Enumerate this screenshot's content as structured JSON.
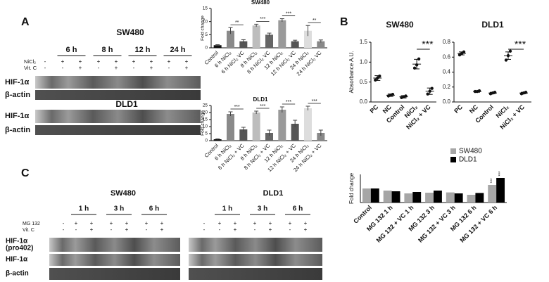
{
  "panel_a": {
    "label": "A",
    "sw480": {
      "title": "SW480",
      "times": [
        "6 h",
        "8 h",
        "12 h",
        "24 h"
      ],
      "treatments": [
        {
          "name": "NiCl₂",
          "signs": [
            "-",
            "+",
            "+",
            "+",
            "+",
            "+",
            "+",
            "+",
            "+"
          ]
        },
        {
          "name": "Vit. C",
          "signs": [
            "-",
            "-",
            "+",
            "-",
            "+",
            "-",
            "+",
            "-",
            "+"
          ]
        }
      ],
      "bands": [
        "HIF-1α",
        "β-actin"
      ]
    },
    "dld1": {
      "title": "DLD1",
      "bands": [
        "HIF-1α",
        "β-actin"
      ]
    }
  },
  "panel_b": {
    "label": "B"
  },
  "panel_c": {
    "label": "C",
    "treatments": [
      "MG 132",
      "Vit. C"
    ],
    "sw480": {
      "title": "SW480",
      "times": [
        "1 h",
        "3 h",
        "6 h"
      ],
      "signs": [
        [
          "-",
          "+",
          "+",
          "+",
          "+",
          "+",
          "+"
        ],
        [
          "-",
          "-",
          "+",
          "-",
          "+",
          "-",
          "+"
        ]
      ]
    },
    "dld1": {
      "title": "DLD1",
      "times": [
        "1 h",
        "3 h",
        "6 h"
      ],
      "signs": [
        [
          "-",
          "+",
          "+",
          "+",
          "+",
          "+",
          "+"
        ],
        [
          "-",
          "-",
          "+",
          "-",
          "+",
          "-",
          "+"
        ]
      ]
    },
    "bands": [
      [
        "HIF-1α",
        "(pro402)"
      ],
      [
        "HIF-1α"
      ],
      [
        "β-actin"
      ]
    ]
  },
  "chart_data": [
    {
      "type": "bar",
      "title": "SW480",
      "ylabel": "Fold change",
      "categories": [
        "Control",
        "6 h NiCl₂",
        "6 h NiCl₂ VC",
        "8 h NiCl₂",
        "8 h NiCl₂ VC",
        "12 h NiCl₂",
        "12 h NiCl₂ VC",
        "24 h NiCl₂",
        "24 h NiCl₂ VC"
      ],
      "values": [
        1,
        6.5,
        2.5,
        8.5,
        5,
        10.5,
        2.5,
        6.5,
        2.5
      ],
      "errors": [
        0.2,
        1.2,
        0.6,
        0.5,
        0.6,
        0.6,
        0.4,
        2,
        0.5
      ],
      "colors": [
        "#111111",
        "#8a8a8a",
        "#555555",
        "#bdbdbd",
        "#666666",
        "#9a9a9a",
        "#555555",
        "#dddddd",
        "#888888"
      ],
      "ylim": [
        0,
        15
      ],
      "yticks": [
        0,
        5,
        10,
        15
      ],
      "significance": [
        "**",
        "***",
        "***",
        "**"
      ]
    },
    {
      "type": "bar",
      "title": "DLD1",
      "ylabel": "Fold change",
      "categories": [
        "Control",
        "6 h NiCl₂",
        "6 h NiCl₂ + VC",
        "8 h NiCl₂",
        "8 h NiCl₂ + VC",
        "12 h NiCl₂",
        "12 h NiCl₂ + VC",
        "24 h NiCl₂",
        "24 h NiCl₂ + VC"
      ],
      "values": [
        1,
        19,
        8,
        20,
        5.5,
        22,
        12,
        23,
        5.5
      ],
      "errors": [
        0.3,
        1.5,
        1.5,
        1,
        2,
        2,
        2.5,
        1.5,
        2
      ],
      "colors": [
        "#111111",
        "#8a8a8a",
        "#555555",
        "#bdbdbd",
        "#666666",
        "#9a9a9a",
        "#555555",
        "#dddddd",
        "#888888"
      ],
      "ylim": [
        0,
        25
      ],
      "yticks": [
        0,
        5,
        10,
        15,
        20,
        25
      ],
      "significance": [
        "***",
        "***",
        "***",
        "***"
      ]
    },
    {
      "type": "dot",
      "title": "SW480",
      "ylabel": "Absorbance A.U.",
      "categories": [
        "PC",
        "NC",
        "Control",
        "NiCl₂",
        "NiCl₂ + VC"
      ],
      "values": [
        0.6,
        0.17,
        0.13,
        0.95,
        0.27
      ],
      "errors": [
        0.06,
        0.03,
        0.03,
        0.12,
        0.08
      ],
      "points": [
        [
          0.55,
          0.6,
          0.65
        ],
        [
          0.15,
          0.17,
          0.19
        ],
        [
          0.11,
          0.13,
          0.15
        ],
        [
          0.85,
          0.93,
          1.08
        ],
        [
          0.2,
          0.27,
          0.34
        ]
      ],
      "ylim": [
        0,
        1.5
      ],
      "yticks": [
        {
          "value": 0,
          "label": "0.0"
        },
        {
          "value": 0.5,
          "label": "0.5"
        },
        {
          "value": 1,
          "label": "1.0"
        },
        {
          "value": 1.5,
          "label": "1.5"
        }
      ],
      "significance": [
        "***"
      ]
    },
    {
      "type": "dot",
      "title": "DLD1",
      "ylabel": null,
      "categories": [
        "PC",
        "NC",
        "Control",
        "NiCl₂",
        "NiCl₂ + VC"
      ],
      "values": [
        0.65,
        0.14,
        0.12,
        0.62,
        0.12
      ],
      "errors": [
        0.02,
        0.01,
        0.01,
        0.05,
        0.01
      ],
      "points": [
        [
          0.63,
          0.65,
          0.67
        ],
        [
          0.14,
          0.14,
          0.15
        ],
        [
          0.11,
          0.12,
          0.13
        ],
        [
          0.56,
          0.62,
          0.68
        ],
        [
          0.11,
          0.12,
          0.13
        ]
      ],
      "ylim": [
        0,
        0.8
      ],
      "yticks": [
        {
          "value": 0,
          "label": "0.0"
        },
        {
          "value": 0.2,
          "label": "0.2"
        },
        {
          "value": 0.4,
          "label": "0.4"
        },
        {
          "value": 0.6,
          "label": "0.6"
        },
        {
          "value": 0.8,
          "label": "0.8"
        }
      ],
      "significance": [
        "***"
      ]
    },
    {
      "type": "grouped_bar",
      "ylabel": "Fold change",
      "categories": [
        "Control",
        "MG 132 1 h",
        "MG 132 + VC 1 h",
        "MG 132 3 h",
        "MG 132 + VC 3 h",
        "MG 132 6 h",
        "MG 132 + VC 6 h"
      ],
      "series": [
        {
          "name": "SW480",
          "color": "#a6a6a6",
          "values": [
            1,
            0.85,
            0.65,
            0.7,
            0.72,
            0.55,
            1.25
          ]
        },
        {
          "name": "DLD1",
          "color": "#000000",
          "values": [
            1,
            0.8,
            0.75,
            0.85,
            0.65,
            0.68,
            1.75
          ]
        }
      ],
      "ylim": [
        0,
        2
      ],
      "significance": [
        "***",
        "***"
      ]
    }
  ]
}
